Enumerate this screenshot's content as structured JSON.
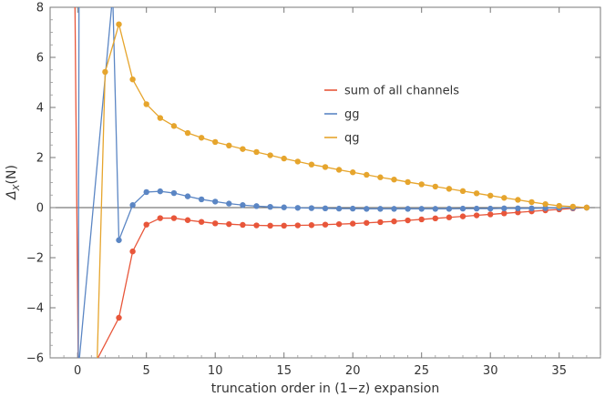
{
  "chart_data": {
    "type": "line",
    "title": "",
    "xlabel": "truncation order in (1−z) expansion",
    "ylabel": "Δ_X(N)",
    "ylabel_main": "Δ",
    "ylabel_sub": "X",
    "ylabel_tail": "(N)",
    "xlim": [
      -2,
      38
    ],
    "ylim": [
      -6,
      8
    ],
    "x_ticks": [
      0,
      5,
      10,
      15,
      20,
      25,
      30,
      35
    ],
    "y_ticks": [
      -6,
      -4,
      -2,
      0,
      2,
      4,
      6,
      8
    ],
    "x_tick_labels": [
      "0",
      "5",
      "10",
      "15",
      "20",
      "25",
      "30",
      "35"
    ],
    "y_tick_labels": [
      "−6",
      "−4",
      "−2",
      "0",
      "2",
      "4",
      "6",
      "8"
    ],
    "legend_position": "center-right",
    "series": [
      {
        "name": "sum of all channels",
        "color": "#e8563a",
        "x": [
          3,
          4,
          5,
          6,
          7,
          8,
          9,
          10,
          11,
          12,
          13,
          14,
          15,
          16,
          17,
          18,
          19,
          20,
          21,
          22,
          23,
          24,
          25,
          26,
          27,
          28,
          29,
          30,
          31,
          32,
          33,
          34,
          35,
          36,
          37
        ],
        "y": [
          -4.4,
          -1.75,
          -0.68,
          -0.42,
          -0.42,
          -0.5,
          -0.57,
          -0.63,
          -0.66,
          -0.69,
          -0.71,
          -0.72,
          -0.72,
          -0.71,
          -0.7,
          -0.68,
          -0.66,
          -0.64,
          -0.61,
          -0.58,
          -0.55,
          -0.51,
          -0.47,
          -0.43,
          -0.39,
          -0.35,
          -0.31,
          -0.27,
          -0.23,
          -0.19,
          -0.15,
          -0.11,
          -0.07,
          -0.03,
          0.0
        ],
        "offscreen_lead_in": {
          "x": [
            -0.2,
            0.05,
            1.0
          ],
          "y": [
            8.5,
            -6.5,
            -6.5
          ]
        }
      },
      {
        "name": "gg",
        "color": "#5b86c4",
        "x": [
          3,
          4,
          5,
          6,
          7,
          8,
          9,
          10,
          11,
          12,
          13,
          14,
          15,
          16,
          17,
          18,
          19,
          20,
          21,
          22,
          23,
          24,
          25,
          26,
          27,
          28,
          29,
          30,
          31,
          32,
          33,
          34,
          35,
          36,
          37
        ],
        "y": [
          -1.3,
          0.1,
          0.62,
          0.65,
          0.58,
          0.45,
          0.33,
          0.24,
          0.16,
          0.1,
          0.06,
          0.03,
          0.01,
          -0.01,
          -0.02,
          -0.03,
          -0.04,
          -0.04,
          -0.05,
          -0.05,
          -0.05,
          -0.05,
          -0.05,
          -0.05,
          -0.05,
          -0.04,
          -0.04,
          -0.04,
          -0.03,
          -0.03,
          -0.03,
          -0.02,
          -0.01,
          -0.01,
          0.0
        ],
        "offscreen_lead_in": {
          "x": [
            0.1,
            0.05,
            2.55
          ],
          "y": [
            8.5,
            -6.5,
            8.5
          ]
        }
      },
      {
        "name": "qg",
        "color": "#e6a52d",
        "x": [
          2,
          3,
          4,
          5,
          6,
          7,
          8,
          9,
          10,
          11,
          12,
          13,
          14,
          15,
          16,
          17,
          18,
          19,
          20,
          21,
          22,
          23,
          24,
          25,
          26,
          27,
          28,
          29,
          30,
          31,
          32,
          33,
          34,
          35,
          36,
          37
        ],
        "y": [
          5.42,
          7.32,
          5.12,
          4.13,
          3.58,
          3.26,
          2.98,
          2.79,
          2.62,
          2.48,
          2.34,
          2.22,
          2.09,
          1.96,
          1.84,
          1.72,
          1.62,
          1.51,
          1.41,
          1.31,
          1.21,
          1.12,
          1.02,
          0.93,
          0.84,
          0.75,
          0.66,
          0.57,
          0.48,
          0.39,
          0.31,
          0.22,
          0.14,
          0.07,
          0.04,
          0.0
        ],
        "offscreen_lead_in": {
          "x": [
            1.4
          ],
          "y": [
            -6.5
          ]
        }
      }
    ]
  }
}
